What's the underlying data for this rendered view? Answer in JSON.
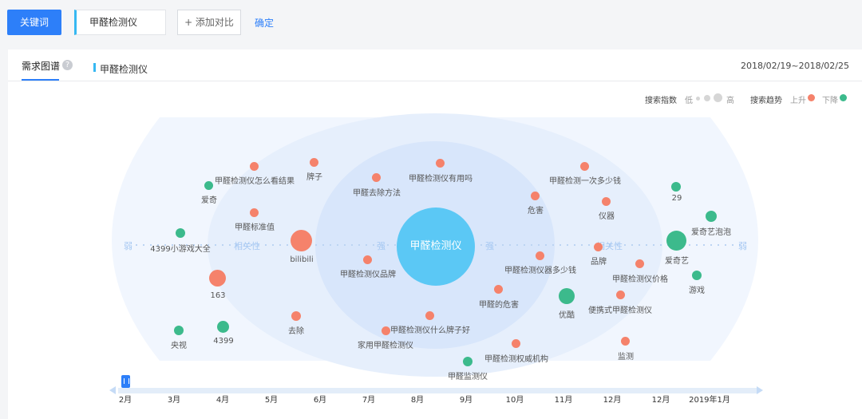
{
  "toolbar": {
    "keyword_button": "关键词",
    "keyword_value": "甲醛检测仪",
    "add_compare": "+ 添加对比",
    "confirm": "确定"
  },
  "panel": {
    "tab_label": "需求图谱",
    "series_label": "甲醛检测仪",
    "date_range": "2018/02/19~2018/02/25"
  },
  "legend": {
    "search_index_label": "搜索指数",
    "low": "低",
    "high": "高",
    "trend_label": "搜索趋势",
    "up": "上升",
    "down": "下降",
    "up_color": "#f5826b",
    "down_color": "#3cba8c"
  },
  "graph": {
    "center": "甲醛检测仪",
    "axis_labels": {
      "weak_left": "弱",
      "rel_left": "相关性",
      "strong_left": "强",
      "strong_right": "强",
      "rel_right": "相关性",
      "weak_right": "弱"
    },
    "nodes": [
      {
        "label": "甲醛检测仪怎么看结果",
        "trend": "up"
      },
      {
        "label": "牌子",
        "trend": "up"
      },
      {
        "label": "爱奇",
        "trend": "down"
      },
      {
        "label": "甲醛标准值",
        "trend": "up"
      },
      {
        "label": "4399小游戏大全",
        "trend": "down"
      },
      {
        "label": "bilibili",
        "trend": "up"
      },
      {
        "label": "163",
        "trend": "up"
      },
      {
        "label": "央视",
        "trend": "down"
      },
      {
        "label": "4399",
        "trend": "down"
      },
      {
        "label": "去除",
        "trend": "up"
      },
      {
        "label": "甲醛去除方法",
        "trend": "up"
      },
      {
        "label": "甲醛检测仪有用吗",
        "trend": "up"
      },
      {
        "label": "甲醛检测仪品牌",
        "trend": "up"
      },
      {
        "label": "甲醛检测仪什么牌子好",
        "trend": "up"
      },
      {
        "label": "家用甲醛检测仪",
        "trend": "up"
      },
      {
        "label": "甲醛监测仪",
        "trend": "down"
      },
      {
        "label": "甲醛检测一次多少钱",
        "trend": "up"
      },
      {
        "label": "危害",
        "trend": "up"
      },
      {
        "label": "仪器",
        "trend": "up"
      },
      {
        "label": "甲醛检测仪器多少钱",
        "trend": "up"
      },
      {
        "label": "品牌",
        "trend": "up"
      },
      {
        "label": "甲醛的危害",
        "trend": "up"
      },
      {
        "label": "优酷",
        "trend": "down"
      },
      {
        "label": "便携式甲醛检测仪",
        "trend": "up"
      },
      {
        "label": "甲醛检测权威机构",
        "trend": "up"
      },
      {
        "label": "监测",
        "trend": "up"
      },
      {
        "label": "甲醛检测仪价格",
        "trend": "up"
      },
      {
        "label": "29",
        "trend": "down"
      },
      {
        "label": "爱奇艺泡泡",
        "trend": "down"
      },
      {
        "label": "爱奇艺",
        "trend": "down"
      },
      {
        "label": "游戏",
        "trend": "down"
      }
    ]
  },
  "timeline": {
    "months": [
      "2月",
      "3月",
      "4月",
      "5月",
      "6月",
      "7月",
      "8月",
      "9月",
      "10月",
      "11月",
      "12月",
      "12月",
      "2019年1月"
    ]
  }
}
